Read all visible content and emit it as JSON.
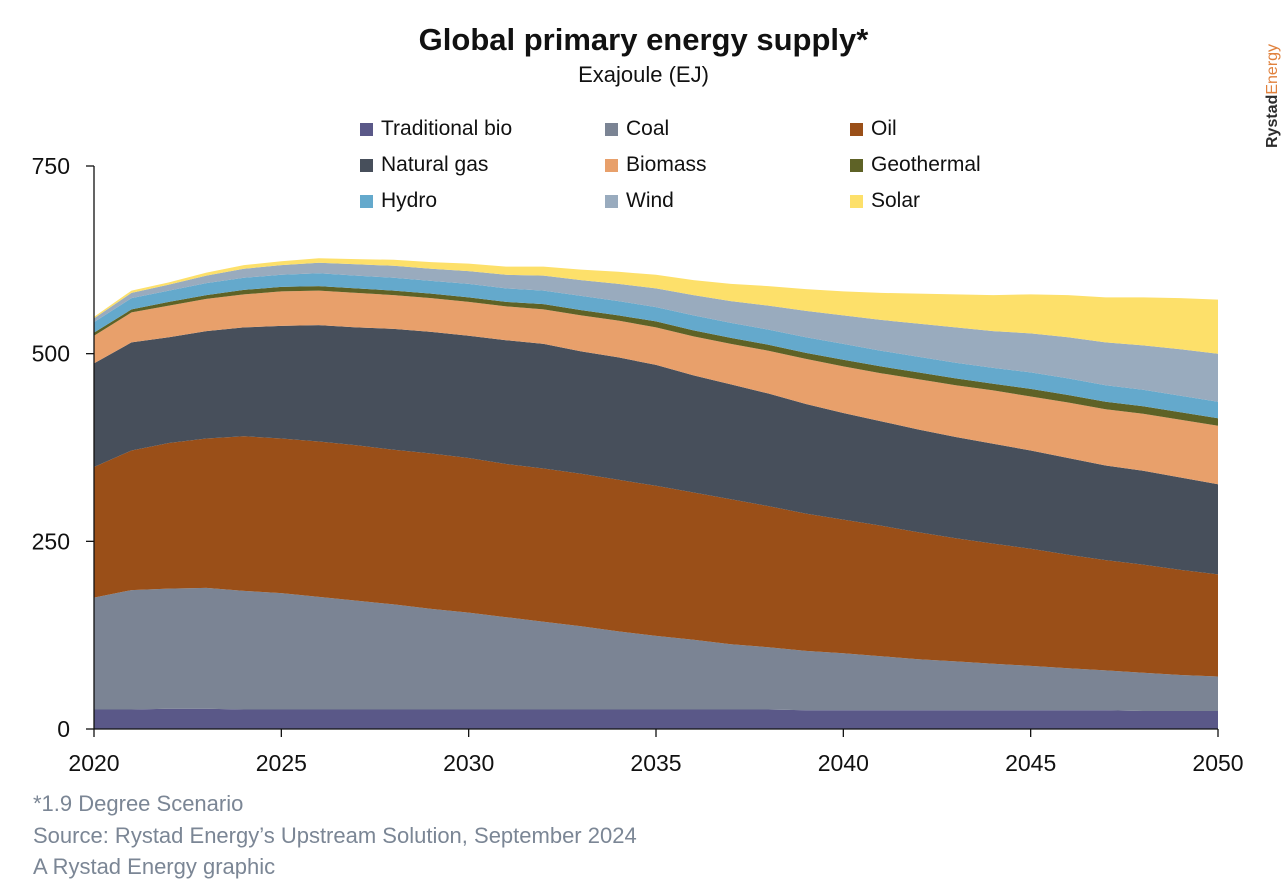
{
  "title": "Global primary energy supply*",
  "subtitle": "Exajoule (EJ)",
  "brand": {
    "part1": "Rystad",
    "part2": "Energy"
  },
  "footer": {
    "note": "*1.9 Degree Scenario",
    "source": "Source: Rystad Energy’s Upstream Solution, September 2024",
    "credit": "A Rystad Energy graphic"
  },
  "chart_data": {
    "type": "area",
    "stacked": true,
    "x": [
      2020,
      2021,
      2022,
      2023,
      2024,
      2025,
      2026,
      2027,
      2028,
      2029,
      2030,
      2031,
      2032,
      2033,
      2034,
      2035,
      2036,
      2037,
      2038,
      2039,
      2040,
      2041,
      2042,
      2043,
      2044,
      2045,
      2046,
      2047,
      2048,
      2049,
      2050
    ],
    "xticks": [
      2020,
      2025,
      2030,
      2035,
      2040,
      2045,
      2050
    ],
    "yticks": [
      0,
      250,
      500,
      750
    ],
    "ylim": [
      0,
      750
    ],
    "xlim": [
      2020,
      2050
    ],
    "grid": false,
    "legend_position": "top",
    "series": [
      {
        "name": "Traditional bio",
        "color": "#5a5888",
        "values": [
          26,
          26,
          27,
          27,
          26,
          26,
          26,
          26,
          26,
          26,
          26,
          26,
          26,
          26,
          26,
          26,
          26,
          26,
          26,
          25,
          25,
          25,
          25,
          25,
          25,
          25,
          25,
          25,
          24,
          24,
          24
        ]
      },
      {
        "name": "Coal",
        "color": "#7b8494",
        "values": [
          149,
          159,
          160,
          161,
          158,
          155,
          150,
          145,
          140,
          134,
          129,
          123,
          117,
          111,
          104,
          98,
          93,
          87,
          83,
          79,
          76,
          72,
          68,
          65,
          62,
          59,
          56,
          53,
          51,
          48,
          46
        ]
      },
      {
        "name": "Oil",
        "color": "#9a4f18",
        "values": [
          174,
          186,
          194,
          199,
          206,
          206,
          207,
          207,
          206,
          207,
          206,
          204,
          204,
          203,
          202,
          200,
          196,
          193,
          188,
          183,
          178,
          174,
          169,
          164,
          160,
          156,
          151,
          147,
          144,
          140,
          136
        ]
      },
      {
        "name": "Natural gas",
        "color": "#474f5b",
        "values": [
          138,
          144,
          141,
          143,
          145,
          150,
          155,
          157,
          161,
          162,
          163,
          165,
          166,
          163,
          163,
          161,
          156,
          153,
          150,
          146,
          142,
          139,
          137,
          135,
          133,
          131,
          129,
          126,
          125,
          123,
          120
        ]
      },
      {
        "name": "Biomass",
        "color": "#e8a06b",
        "values": [
          37,
          40,
          42,
          43,
          44,
          46,
          46,
          46,
          45,
          45,
          45,
          45,
          46,
          48,
          49,
          50,
          52,
          54,
          57,
          60,
          62,
          64,
          67,
          69,
          71,
          72,
          74,
          75,
          76,
          77,
          78
        ]
      },
      {
        "name": "Geothermal",
        "color": "#5e6226",
        "values": [
          4,
          4,
          5,
          5,
          6,
          6,
          6,
          6,
          6,
          6,
          6,
          6,
          7,
          7,
          7,
          8,
          8,
          8,
          8,
          8,
          9,
          9,
          9,
          9,
          9,
          10,
          10,
          10,
          10,
          10,
          10
        ]
      },
      {
        "name": "Hydro",
        "color": "#64a9cc",
        "values": [
          14,
          15,
          15,
          16,
          16,
          16,
          17,
          17,
          17,
          17,
          18,
          18,
          18,
          19,
          19,
          19,
          20,
          20,
          20,
          21,
          21,
          21,
          21,
          21,
          21,
          22,
          22,
          22,
          22,
          22,
          22
        ]
      },
      {
        "name": "Wind",
        "color": "#99abbe",
        "values": [
          5,
          7,
          8,
          10,
          12,
          13,
          14,
          15,
          16,
          16,
          17,
          18,
          20,
          21,
          23,
          25,
          27,
          29,
          32,
          35,
          38,
          41,
          44,
          47,
          49,
          52,
          55,
          57,
          59,
          62,
          64
        ]
      },
      {
        "name": "Solar",
        "color": "#fde06a",
        "values": [
          2,
          3,
          3,
          4,
          5,
          5,
          6,
          7,
          8,
          9,
          10,
          11,
          12,
          14,
          16,
          18,
          20,
          23,
          26,
          29,
          32,
          36,
          40,
          44,
          48,
          52,
          56,
          60,
          64,
          68,
          72
        ]
      }
    ]
  }
}
